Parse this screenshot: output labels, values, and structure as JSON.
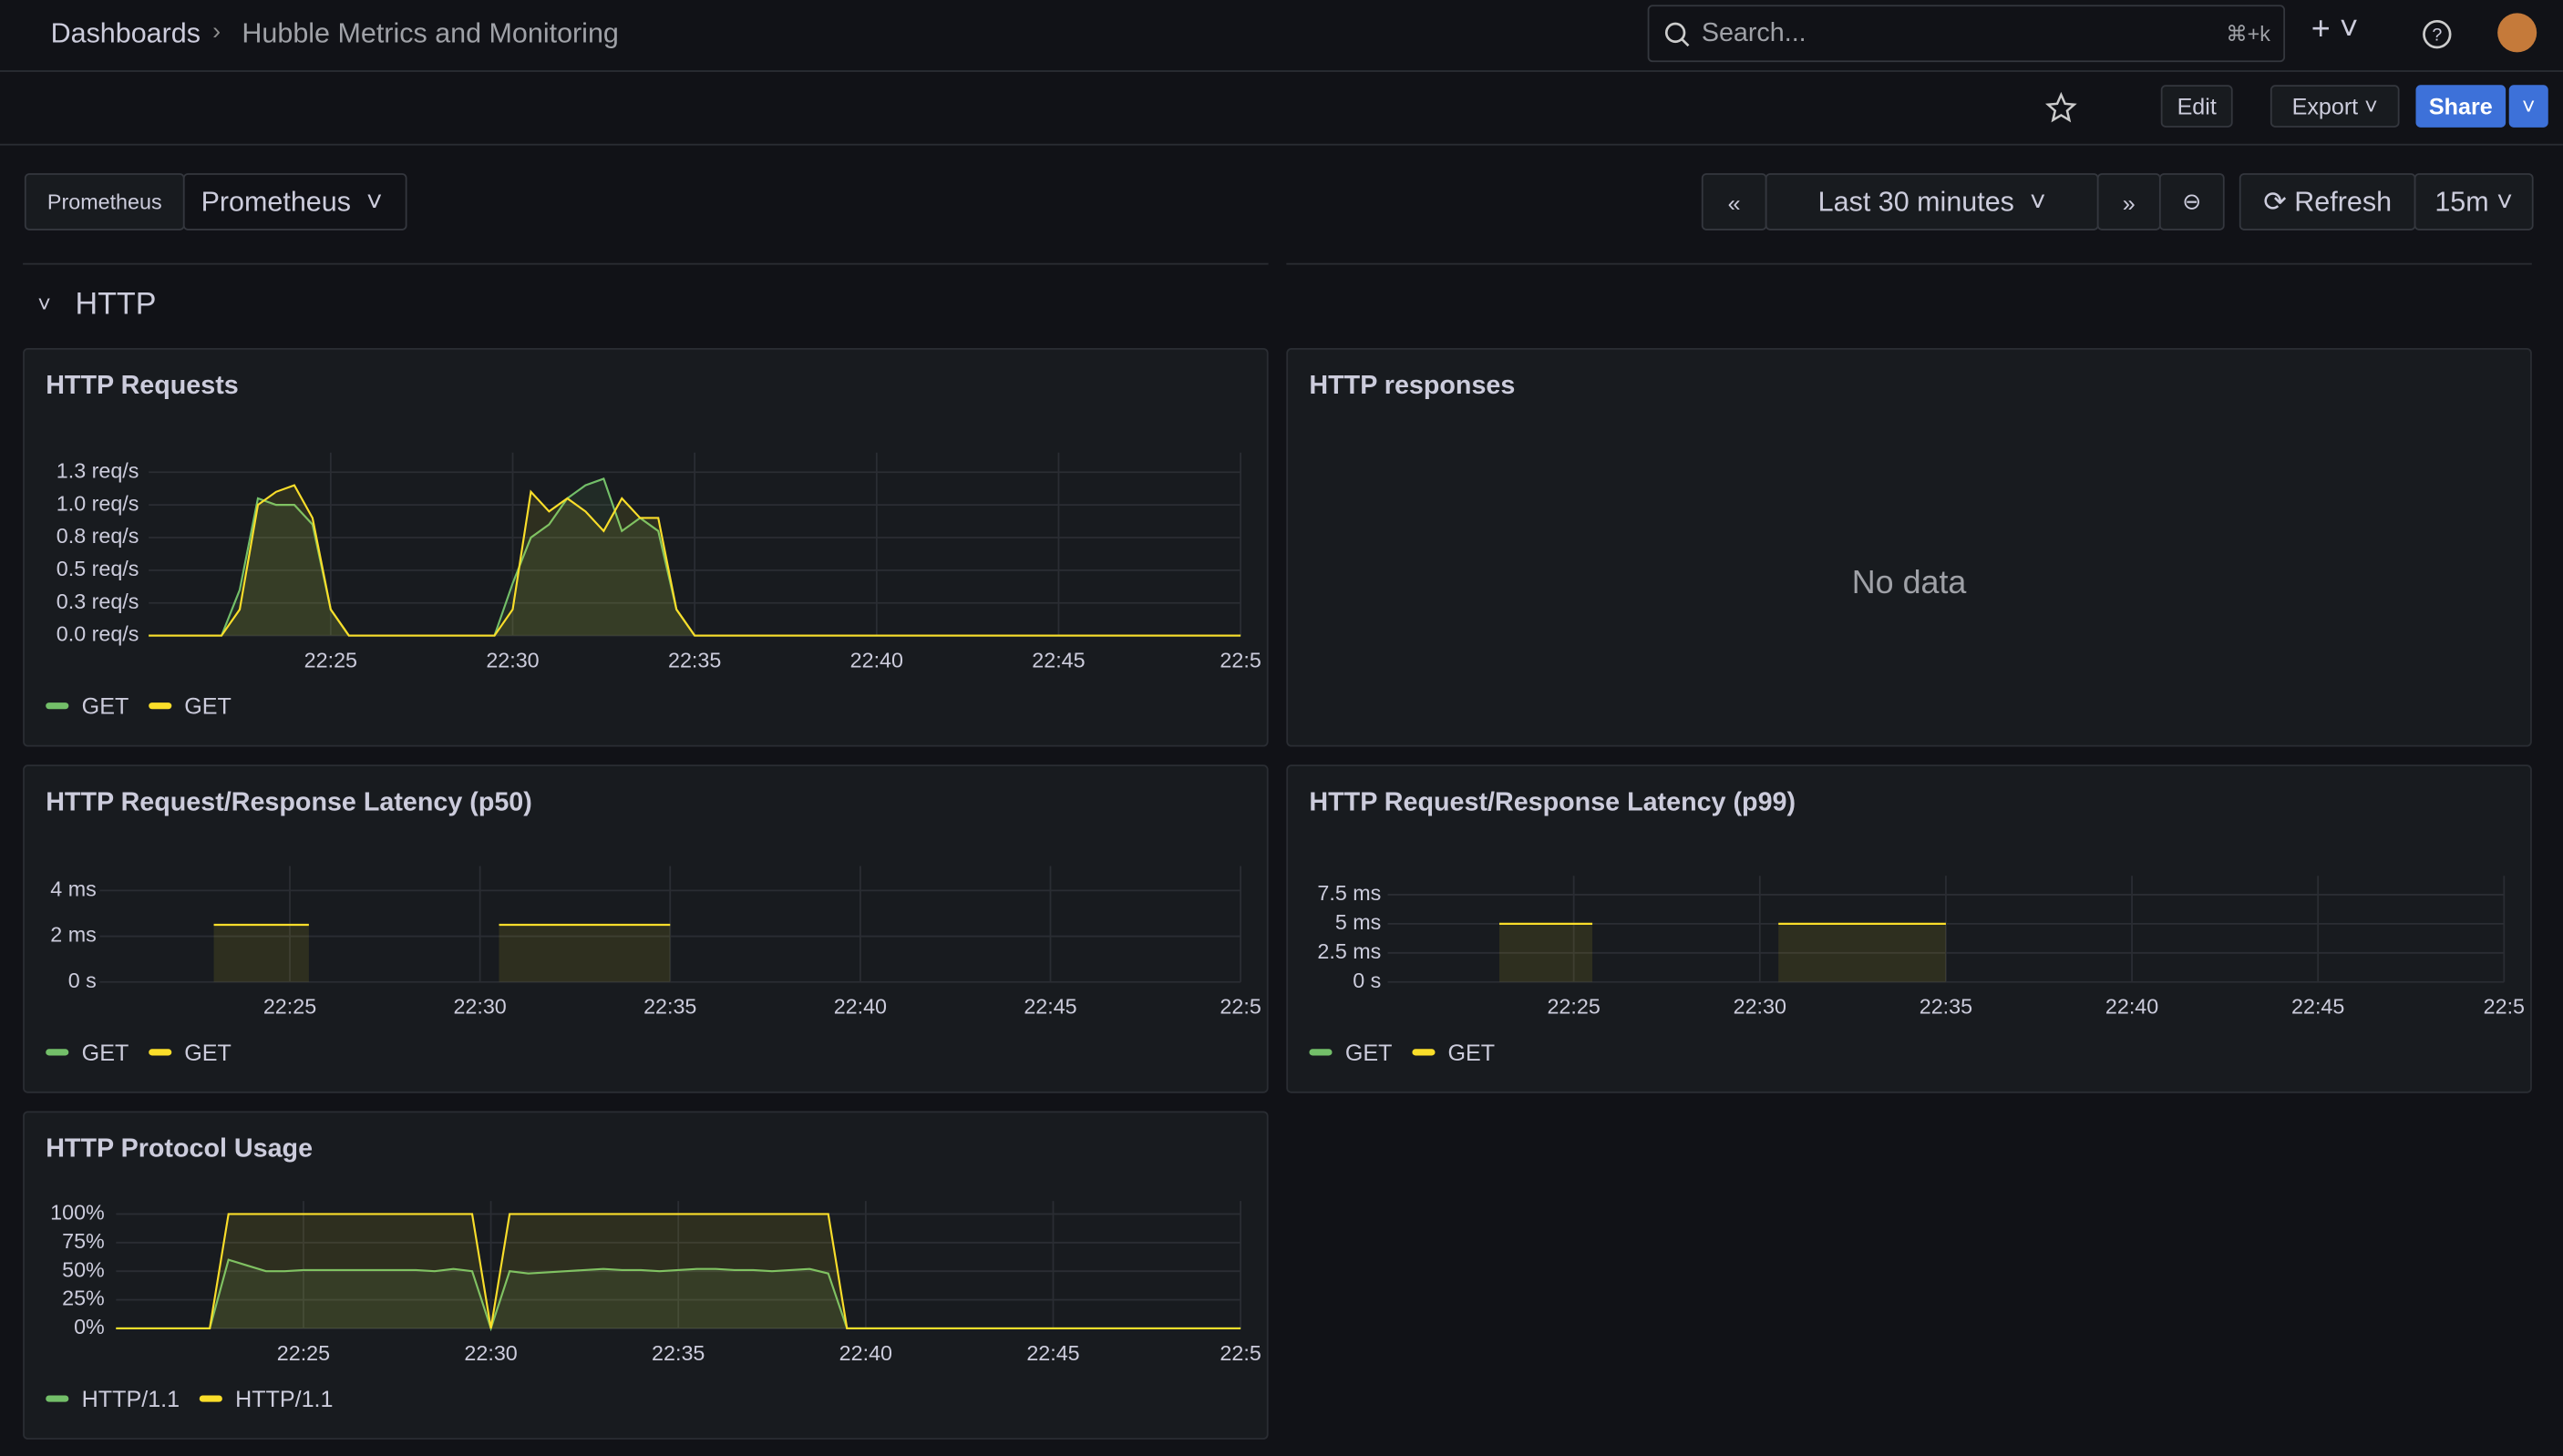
{
  "header": {
    "breadcrumb": [
      "Dashboards",
      "Hubble Metrics and Monitoring"
    ],
    "search": "Search...",
    "shortcut": "⌘+k"
  },
  "toolbar": {
    "edit": "Edit",
    "export": "Export",
    "share": "Share"
  },
  "variables": {
    "label": "Prometheus",
    "value": "Prometheus"
  },
  "time": {
    "range": "Last 30 minutes",
    "refresh": "Refresh",
    "interval": "15m"
  },
  "section": "HTTP",
  "panels": [
    {
      "title": "HTTP Requests",
      "chart_data": {
        "type": "line",
        "xlim": [
          0,
          60
        ],
        "xticks": [
          {
            "value": 10,
            "label": "22:25"
          },
          {
            "value": 20,
            "label": "22:30"
          },
          {
            "value": 30,
            "label": "22:35"
          },
          {
            "value": 40,
            "label": "22:40"
          },
          {
            "value": 50,
            "label": "22:45"
          },
          {
            "value": 60,
            "label": "22:5"
          }
        ],
        "ylim": [
          0,
          1.3
        ],
        "yticks": [
          {
            "value": 0,
            "label": "0.0 req/s"
          },
          {
            "value": 0.25,
            "label": "0.3 req/s"
          },
          {
            "value": 0.5,
            "label": "0.5 req/s"
          },
          {
            "value": 0.75,
            "label": "0.8 req/s"
          },
          {
            "value": 1.0,
            "label": "1.0 req/s"
          },
          {
            "value": 1.25,
            "label": "1.3 req/s"
          }
        ],
        "grid": true,
        "series": [
          {
            "name": "GET",
            "color": "#73bf69",
            "values": [
              0,
              0,
              0,
              0,
              0,
              0.35,
              1.05,
              1.0,
              1.0,
              0.85,
              0.2,
              0,
              0,
              0,
              0,
              0,
              0,
              0,
              0,
              0,
              0.4,
              0.75,
              0.85,
              1.05,
              1.15,
              1.2,
              0.8,
              0.9,
              0.8,
              0.2,
              0,
              0,
              0,
              0,
              0,
              0,
              0,
              0,
              0,
              0,
              0,
              0,
              0,
              0,
              0,
              0,
              0,
              0,
              0,
              0,
              0,
              0,
              0,
              0,
              0,
              0,
              0,
              0,
              0,
              0,
              0
            ]
          },
          {
            "name": "GET",
            "color": "#fade2a",
            "values": [
              0,
              0,
              0,
              0,
              0,
              0.2,
              1.0,
              1.1,
              1.15,
              0.9,
              0.2,
              0,
              0,
              0,
              0,
              0,
              0,
              0,
              0,
              0,
              0.2,
              1.1,
              0.95,
              1.05,
              0.95,
              0.8,
              1.05,
              0.9,
              0.9,
              0.2,
              0,
              0,
              0,
              0,
              0,
              0,
              0,
              0,
              0,
              0,
              0,
              0,
              0,
              0,
              0,
              0,
              0,
              0,
              0,
              0,
              0,
              0,
              0,
              0,
              0,
              0,
              0,
              0,
              0,
              0,
              0
            ]
          }
        ]
      }
    },
    {
      "title": "HTTP responses",
      "message": "No data"
    },
    {
      "title": "HTTP Request/Response Latency (p50)",
      "chart_data": {
        "type": "line",
        "xlim": [
          0,
          60
        ],
        "xticks": [
          {
            "value": 10,
            "label": "22:25"
          },
          {
            "value": 20,
            "label": "22:30"
          },
          {
            "value": 30,
            "label": "22:35"
          },
          {
            "value": 40,
            "label": "22:40"
          },
          {
            "value": 50,
            "label": "22:45"
          },
          {
            "value": 60,
            "label": "22:5"
          }
        ],
        "ylim": [
          0,
          4.5
        ],
        "yticks": [
          {
            "value": 0,
            "label": "0 s"
          },
          {
            "value": 2,
            "label": "2 ms"
          },
          {
            "value": 4,
            "label": "4 ms"
          }
        ],
        "grid": true,
        "series": [
          {
            "name": "GET",
            "color": "#73bf69",
            "values": [
              null,
              null,
              null,
              null,
              null,
              null,
              null,
              null,
              null,
              null,
              null,
              null,
              null,
              null,
              null,
              null,
              null,
              null,
              null,
              null,
              null,
              null,
              null,
              null,
              null,
              null,
              null,
              null,
              null,
              null,
              null,
              null,
              null,
              null,
              null,
              null,
              null,
              null,
              null,
              null,
              null,
              null,
              null,
              null,
              null,
              null,
              null,
              null,
              null,
              null,
              null,
              null,
              null,
              null,
              null,
              null,
              null,
              null,
              null,
              null,
              null
            ]
          },
          {
            "name": "GET",
            "color": "#fade2a",
            "values": [
              null,
              null,
              null,
              null,
              null,
              null,
              2.5,
              2.5,
              2.5,
              2.5,
              2.5,
              2.5,
              null,
              null,
              null,
              null,
              null,
              null,
              null,
              null,
              null,
              2.5,
              2.5,
              2.5,
              2.5,
              2.5,
              2.5,
              2.5,
              2.5,
              2.5,
              2.5,
              null,
              null,
              null,
              null,
              null,
              null,
              null,
              null,
              null,
              null,
              null,
              null,
              null,
              null,
              null,
              null,
              null,
              null,
              null,
              null,
              null,
              null,
              null,
              null,
              null,
              null,
              null,
              null,
              null,
              null
            ]
          }
        ]
      }
    },
    {
      "title": "HTTP Request/Response Latency (p99)",
      "chart_data": {
        "type": "line",
        "xlim": [
          0,
          60
        ],
        "xticks": [
          {
            "value": 10,
            "label": "22:25"
          },
          {
            "value": 20,
            "label": "22:30"
          },
          {
            "value": 30,
            "label": "22:35"
          },
          {
            "value": 40,
            "label": "22:40"
          },
          {
            "value": 50,
            "label": "22:45"
          },
          {
            "value": 60,
            "label": "22:5"
          }
        ],
        "ylim": [
          0,
          8
        ],
        "yticks": [
          {
            "value": 0,
            "label": "0 s"
          },
          {
            "value": 2.5,
            "label": "2.5 ms"
          },
          {
            "value": 5,
            "label": "5 ms"
          },
          {
            "value": 7.5,
            "label": "7.5 ms"
          }
        ],
        "grid": true,
        "series": [
          {
            "name": "GET",
            "color": "#73bf69",
            "values": [
              null,
              null,
              null,
              null,
              null,
              null,
              null,
              null,
              null,
              null,
              null,
              null,
              null,
              null,
              null,
              null,
              null,
              null,
              null,
              null,
              null,
              null,
              null,
              null,
              null,
              null,
              null,
              null,
              null,
              null,
              null,
              null,
              null,
              null,
              null,
              null,
              null,
              null,
              null,
              null,
              null,
              null,
              null,
              null,
              null,
              null,
              null,
              null,
              null,
              null,
              null,
              null,
              null,
              null,
              null,
              null,
              null,
              null,
              null,
              null,
              null
            ]
          },
          {
            "name": "GET",
            "color": "#fade2a",
            "values": [
              null,
              null,
              null,
              null,
              null,
              null,
              5,
              5,
              5,
              5,
              5,
              5,
              null,
              null,
              null,
              null,
              null,
              null,
              null,
              null,
              null,
              5,
              5,
              5,
              5,
              5,
              5,
              5,
              5,
              5,
              5,
              null,
              null,
              null,
              null,
              null,
              null,
              null,
              null,
              null,
              null,
              null,
              null,
              null,
              null,
              null,
              null,
              null,
              null,
              null,
              null,
              null,
              null,
              null,
              null,
              null,
              null,
              null,
              null,
              null,
              null
            ]
          }
        ]
      }
    },
    {
      "title": "HTTP Protocol Usage",
      "chart_data": {
        "type": "line",
        "xlim": [
          0,
          60
        ],
        "xticks": [
          {
            "value": 10,
            "label": "22:25"
          },
          {
            "value": 20,
            "label": "22:30"
          },
          {
            "value": 30,
            "label": "22:35"
          },
          {
            "value": 40,
            "label": "22:40"
          },
          {
            "value": 50,
            "label": "22:45"
          },
          {
            "value": 60,
            "label": "22:5"
          }
        ],
        "ylim": [
          0,
          100
        ],
        "yticks": [
          {
            "value": 0,
            "label": "0%"
          },
          {
            "value": 25,
            "label": "25%"
          },
          {
            "value": 50,
            "label": "50%"
          },
          {
            "value": 75,
            "label": "75%"
          },
          {
            "value": 100,
            "label": "100%"
          }
        ],
        "grid": true,
        "series": [
          {
            "name": "HTTP/1.1",
            "color": "#73bf69",
            "values": [
              0,
              0,
              0,
              0,
              0,
              0,
              60,
              55,
              50,
              50,
              51,
              51,
              51,
              51,
              51,
              51,
              51,
              50,
              52,
              50,
              0,
              50,
              48,
              49,
              50,
              51,
              52,
              51,
              51,
              50,
              51,
              52,
              52,
              51,
              51,
              50,
              51,
              52,
              48,
              0,
              0,
              0,
              0,
              0,
              0,
              0,
              0,
              0,
              0,
              0,
              0,
              0,
              0,
              0,
              0,
              0,
              0,
              0,
              0,
              0,
              0
            ]
          },
          {
            "name": "HTTP/1.1",
            "color": "#fade2a",
            "values": [
              0,
              0,
              0,
              0,
              0,
              0,
              100,
              100,
              100,
              100,
              100,
              100,
              100,
              100,
              100,
              100,
              100,
              100,
              100,
              100,
              0,
              100,
              100,
              100,
              100,
              100,
              100,
              100,
              100,
              100,
              100,
              100,
              100,
              100,
              100,
              100,
              100,
              100,
              100,
              0,
              0,
              0,
              0,
              0,
              0,
              0,
              0,
              0,
              0,
              0,
              0,
              0,
              0,
              0,
              0,
              0,
              0,
              0,
              0,
              0,
              0
            ]
          }
        ]
      }
    }
  ]
}
